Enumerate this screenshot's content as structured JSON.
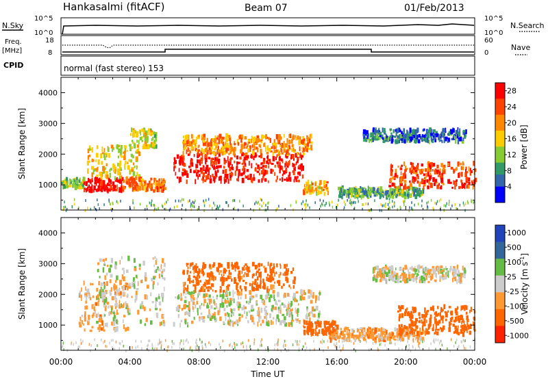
{
  "header": {
    "station": "Hankasalmi (fitACF)",
    "beam": "Beam 07",
    "date": "01/Feb/2013"
  },
  "nsky_panel": {
    "left_label": "N.Sky",
    "left_ticks": [
      "10^5",
      "10^0"
    ],
    "right_ticks": [
      "10^5",
      "10^0"
    ],
    "right_label": "N.Search"
  },
  "freq_panel": {
    "left_label_1": "Freq.",
    "left_label_2": "[MHz]",
    "left_ticks": [
      "18",
      "8"
    ],
    "right_ticks": [
      "60",
      "0"
    ],
    "right_label": "Nave"
  },
  "cpid_panel": {
    "label": "CPID",
    "mode_text": "normal (fast stereo) 153"
  },
  "power_panel": {
    "ylabel": "Slant Range [km]",
    "yticks": [
      "4000",
      "3000",
      "2000",
      "1000"
    ],
    "colorbar_label": "Power [dB]",
    "colorbar_ticks": [
      "28",
      "24",
      "20",
      "16",
      "12",
      "8",
      "4"
    ]
  },
  "velocity_panel": {
    "ylabel": "Slant Range [km]",
    "yticks": [
      "4000",
      "3000",
      "2000",
      "1000"
    ],
    "colorbar_label": "Velocity [m s",
    "colorbar_label_sup": "-1",
    "colorbar_label_end": "]",
    "colorbar_ticks": [
      "1000",
      "500",
      "100",
      "25",
      "-25",
      "-100",
      "-500",
      "-1000"
    ]
  },
  "xaxis": {
    "ticks": [
      "00:00",
      "04:00",
      "08:00",
      "12:00",
      "16:00",
      "20:00",
      "00:00"
    ],
    "label": "Time UT"
  },
  "colors": {
    "power_scale": [
      "#ff0000",
      "#ff4400",
      "#ff8800",
      "#ffcc00",
      "#88cc33",
      "#339966",
      "#3366aa",
      "#0000ff"
    ],
    "velocity_scale": [
      "#2244bb",
      "#336699",
      "#66bb44",
      "#cccccc",
      "#ff9933",
      "#ff6600",
      "#ff2200"
    ]
  },
  "chart_data": [
    {
      "type": "heatmap",
      "title": "",
      "ylabel": "Slant Range [km]",
      "xlabel": "Time UT",
      "x_range": [
        "00:00",
        "24:00"
      ],
      "ylim": [
        180,
        4500
      ],
      "colorbar": "Power [dB]",
      "colorbar_range": [
        0,
        30
      ],
      "regions": [
        {
          "t_start": 0.0,
          "t_end": 1.3,
          "r_min": 900,
          "r_max": 1200,
          "level": 12
        },
        {
          "t_start": 1.3,
          "t_end": 3.5,
          "r_min": 800,
          "r_max": 1200,
          "level": 28
        },
        {
          "t_start": 1.5,
          "t_end": 4.5,
          "r_min": 1200,
          "r_max": 2300,
          "level": 16
        },
        {
          "t_start": 4.0,
          "t_end": 5.5,
          "r_min": 2200,
          "r_max": 2800,
          "level": 14
        },
        {
          "t_start": 3.5,
          "t_end": 6.0,
          "r_min": 800,
          "r_max": 1200,
          "level": 22
        },
        {
          "t_start": 6.5,
          "t_end": 14.0,
          "r_min": 1100,
          "r_max": 2000,
          "level": 28
        },
        {
          "t_start": 7.0,
          "t_end": 14.5,
          "r_min": 2000,
          "r_max": 2600,
          "level": 20
        },
        {
          "t_start": 14.0,
          "t_end": 15.5,
          "r_min": 700,
          "r_max": 1100,
          "level": 18
        },
        {
          "t_start": 16.0,
          "t_end": 21.0,
          "r_min": 600,
          "r_max": 900,
          "level": 10
        },
        {
          "t_start": 19.0,
          "t_end": 24.0,
          "r_min": 900,
          "r_max": 1700,
          "level": 24
        },
        {
          "t_start": 17.5,
          "t_end": 23.5,
          "r_min": 2400,
          "r_max": 2800,
          "level": 6
        }
      ]
    },
    {
      "type": "heatmap",
      "title": "",
      "ylabel": "Slant Range [km]",
      "xlabel": "Time UT",
      "x_range": [
        "00:00",
        "24:00"
      ],
      "ylim": [
        180,
        4500
      ],
      "colorbar": "Velocity [m s-1]",
      "colorbar_range": [
        -1000,
        1000
      ],
      "regions": [
        {
          "t_start": 1.0,
          "t_end": 4.0,
          "r_min": 800,
          "r_max": 2400,
          "level": -50
        },
        {
          "t_start": 2.0,
          "t_end": 6.0,
          "r_min": 1000,
          "r_max": 3200,
          "level": 0
        },
        {
          "t_start": 6.5,
          "t_end": 15.0,
          "r_min": 1000,
          "r_max": 2100,
          "level": 0
        },
        {
          "t_start": 7.0,
          "t_end": 13.5,
          "r_min": 2100,
          "r_max": 3000,
          "level": -150
        },
        {
          "t_start": 14.0,
          "t_end": 16.0,
          "r_min": 700,
          "r_max": 1100,
          "level": -300
        },
        {
          "t_start": 15.5,
          "t_end": 21.0,
          "r_min": 500,
          "r_max": 900,
          "level": -60
        },
        {
          "t_start": 19.5,
          "t_end": 24.0,
          "r_min": 700,
          "r_max": 1600,
          "level": -200
        },
        {
          "t_start": 18.0,
          "t_end": 23.5,
          "r_min": 2400,
          "r_max": 2900,
          "level": 0
        }
      ]
    }
  ]
}
